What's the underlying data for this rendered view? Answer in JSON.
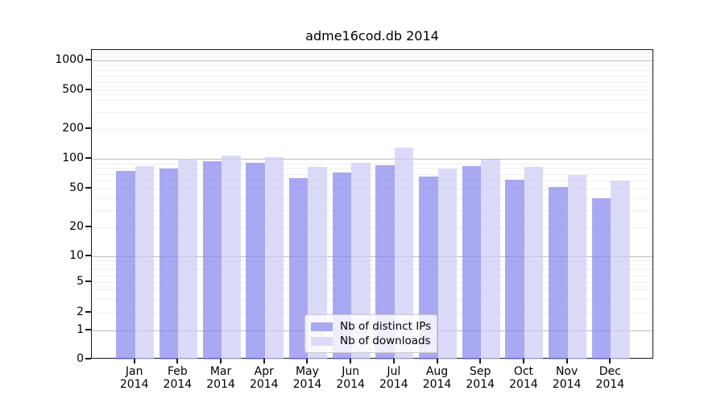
{
  "title": "adme16cod.db 2014",
  "background": "#ffffff",
  "chart_data": {
    "type": "bar",
    "title": "adme16cod.db 2014",
    "yscale": "symlog",
    "grid": true,
    "categories": [
      "Jan 2014",
      "Feb 2014",
      "Mar 2014",
      "Apr 2014",
      "May 2014",
      "Jun 2014",
      "Jul 2014",
      "Aug 2014",
      "Sep 2014",
      "Oct 2014",
      "Nov 2014",
      "Dec 2014"
    ],
    "series": [
      {
        "name": "Nb of distinct IPs",
        "color": "#a9a9f3",
        "values": [
          75,
          80,
          95,
          91,
          64,
          73,
          86,
          66,
          84,
          62,
          52,
          40
        ]
      },
      {
        "name": "Nb of downloads",
        "color": "#dbdbf9",
        "values": [
          85,
          100,
          108,
          103,
          83,
          91,
          130,
          80,
          98,
          83,
          69,
          60
        ]
      }
    ],
    "y_ticks": [
      0,
      1,
      2,
      5,
      10,
      20,
      50,
      100,
      200,
      500,
      1000
    ],
    "y_tick_labels": [
      "0",
      "1",
      "2",
      "5",
      "10",
      "20",
      "50",
      "100",
      "200",
      "500",
      "1000"
    ],
    "ylim": [
      0,
      1280
    ],
    "xlabel": "",
    "ylabel": "",
    "legend_position": "lower center"
  }
}
